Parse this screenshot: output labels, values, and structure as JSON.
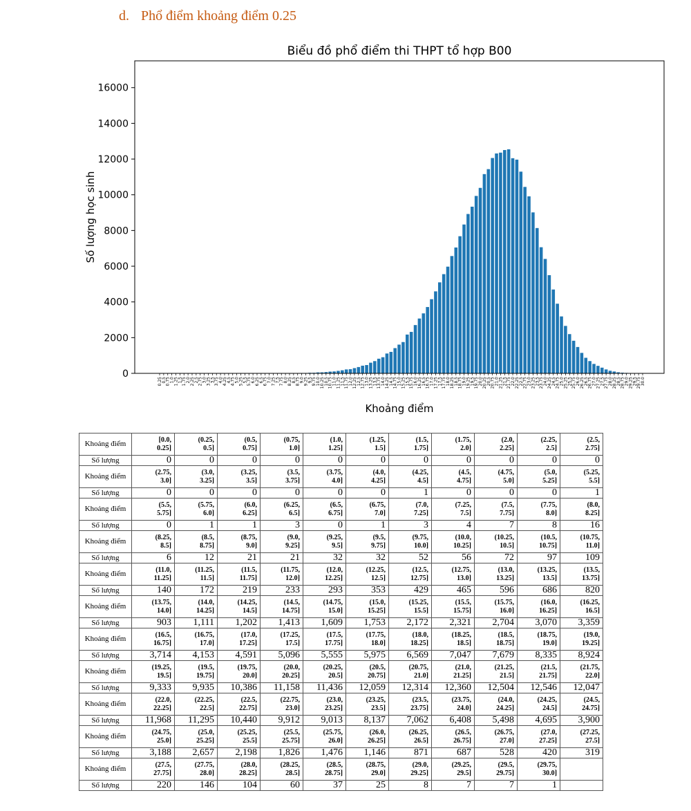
{
  "heading": {
    "marker": "d.",
    "text": "Phổ điểm khoảng điểm 0.25"
  },
  "colors": {
    "bar": "#1f77b4",
    "heading": "#c55a11"
  },
  "chart_data": {
    "type": "bar",
    "title": "Biểu đồ phổ điểm thi THPT tổ hợp B00",
    "xlabel": "Khoảng điểm",
    "ylabel": "Số lượng học sinh",
    "ylim": [
      0,
      17500
    ],
    "yticks": [
      "0",
      "2000",
      "4000",
      "6000",
      "8000",
      "10000",
      "12000",
      "14000",
      "16000"
    ],
    "grid": false,
    "categories": [
      "0.25",
      "0.5",
      "0.75",
      "1.0",
      "1.25",
      "1.5",
      "1.75",
      "2.0",
      "2.25",
      "2.5",
      "2.75",
      "3.0",
      "3.25",
      "3.5",
      "3.75",
      "4.0",
      "4.25",
      "4.5",
      "4.75",
      "5.0",
      "5.25",
      "5.5",
      "5.75",
      "6.0",
      "6.25",
      "6.5",
      "6.75",
      "7.0",
      "7.25",
      "7.5",
      "7.75",
      "8.0",
      "8.25",
      "8.5",
      "8.75",
      "9.0",
      "9.25",
      "9.5",
      "9.75",
      "10.0",
      "10.25",
      "10.5",
      "10.75",
      "11.0",
      "11.25",
      "11.5",
      "11.75",
      "12.0",
      "12.25",
      "12.5",
      "12.75",
      "13.0",
      "13.25",
      "13.5",
      "13.75",
      "14.0",
      "14.25",
      "14.5",
      "14.75",
      "15.0",
      "15.25",
      "15.5",
      "15.75",
      "16.0",
      "16.25",
      "16.5",
      "16.75",
      "17.0",
      "17.25",
      "17.5",
      "17.75",
      "18.0",
      "18.25",
      "18.5",
      "18.75",
      "19.0",
      "19.25",
      "19.5",
      "19.75",
      "20.0",
      "20.25",
      "20.5",
      "20.75",
      "21.0",
      "21.25",
      "21.5",
      "21.75",
      "22.0",
      "22.25",
      "22.5",
      "22.75",
      "23.0",
      "23.25",
      "23.5",
      "23.75",
      "24.0",
      "24.25",
      "24.5",
      "24.75",
      "25.0",
      "25.25",
      "25.5",
      "25.75",
      "26.0",
      "26.25",
      "26.5",
      "26.75",
      "27.0",
      "27.25",
      "27.5",
      "27.75",
      "28.0",
      "28.25",
      "28.5",
      "28.75",
      "29.0",
      "29.25",
      "29.5",
      "29.75",
      "30.0"
    ],
    "values": [
      0,
      0,
      0,
      0,
      0,
      0,
      0,
      0,
      0,
      0,
      0,
      0,
      0,
      0,
      0,
      0,
      0,
      1,
      0,
      0,
      0,
      1,
      0,
      1,
      1,
      3,
      0,
      1,
      3,
      4,
      7,
      8,
      16,
      6,
      12,
      21,
      21,
      32,
      32,
      52,
      56,
      72,
      97,
      109,
      140,
      172,
      219,
      233,
      293,
      353,
      429,
      465,
      596,
      686,
      820,
      903,
      1111,
      1202,
      1413,
      1609,
      1753,
      2172,
      2321,
      2704,
      3070,
      3359,
      3714,
      4153,
      4591,
      5096,
      5555,
      5975,
      6569,
      7047,
      7679,
      8335,
      8924,
      9333,
      9935,
      10386,
      11158,
      11436,
      12059,
      12314,
      12360,
      12504,
      12546,
      12047,
      11968,
      11295,
      10440,
      9912,
      9013,
      8137,
      7062,
      6408,
      5498,
      4695,
      3900,
      3188,
      2657,
      2198,
      1826,
      1476,
      1146,
      871,
      687,
      528,
      420,
      319,
      220,
      146,
      104,
      60,
      37,
      25,
      8,
      7,
      7,
      1
    ]
  },
  "table": {
    "row_label_range": "Khoảng điểm",
    "row_label_count": "Số lượng",
    "rows": [
      {
        "ranges": [
          [
            "[0.0,",
            "0.25]"
          ],
          [
            "(0.25,",
            "0.5]"
          ],
          [
            "(0.5,",
            "0.75]"
          ],
          [
            "(0.75,",
            "1.0]"
          ],
          [
            "(1.0,",
            "1.25]"
          ],
          [
            "(1.25,",
            "1.5]"
          ],
          [
            "(1.5,",
            "1.75]"
          ],
          [
            "(1.75,",
            "2.0]"
          ],
          [
            "(2.0,",
            "2.25]"
          ],
          [
            "(2.25,",
            "2.5]"
          ],
          [
            "(2.5,",
            "2.75]"
          ]
        ],
        "counts": [
          "0",
          "0",
          "0",
          "0",
          "0",
          "0",
          "0",
          "0",
          "0",
          "0",
          "0"
        ]
      },
      {
        "ranges": [
          [
            "(2.75,",
            "3.0]"
          ],
          [
            "(3.0,",
            "3.25]"
          ],
          [
            "(3.25,",
            "3.5]"
          ],
          [
            "(3.5,",
            "3.75]"
          ],
          [
            "(3.75,",
            "4.0]"
          ],
          [
            "(4.0,",
            "4.25]"
          ],
          [
            "(4.25,",
            "4.5]"
          ],
          [
            "(4.5,",
            "4.75]"
          ],
          [
            "(4.75,",
            "5.0]"
          ],
          [
            "(5.0,",
            "5.25]"
          ],
          [
            "(5.25,",
            "5.5]"
          ]
        ],
        "counts": [
          "0",
          "0",
          "0",
          "0",
          "0",
          "0",
          "1",
          "0",
          "0",
          "0",
          "1"
        ]
      },
      {
        "ranges": [
          [
            "(5.5,",
            "5.75]"
          ],
          [
            "(5.75,",
            "6.0]"
          ],
          [
            "(6.0,",
            "6.25]"
          ],
          [
            "(6.25,",
            "6.5]"
          ],
          [
            "(6.5,",
            "6.75]"
          ],
          [
            "(6.75,",
            "7.0]"
          ],
          [
            "(7.0,",
            "7.25]"
          ],
          [
            "(7.25,",
            "7.5]"
          ],
          [
            "(7.5,",
            "7.75]"
          ],
          [
            "(7.75,",
            "8.0]"
          ],
          [
            "(8.0,",
            "8.25]"
          ]
        ],
        "counts": [
          "0",
          "1",
          "1",
          "3",
          "0",
          "1",
          "3",
          "4",
          "7",
          "8",
          "16"
        ]
      },
      {
        "ranges": [
          [
            "(8.25,",
            "8.5]"
          ],
          [
            "(8.5,",
            "8.75]"
          ],
          [
            "(8.75,",
            "9.0]"
          ],
          [
            "(9.0,",
            "9.25]"
          ],
          [
            "(9.25,",
            "9.5]"
          ],
          [
            "(9.5,",
            "9.75]"
          ],
          [
            "(9.75,",
            "10.0]"
          ],
          [
            "(10.0,",
            "10.25]"
          ],
          [
            "(10.25,",
            "10.5]"
          ],
          [
            "(10.5,",
            "10.75]"
          ],
          [
            "(10.75,",
            "11.0]"
          ]
        ],
        "counts": [
          "6",
          "12",
          "21",
          "21",
          "32",
          "32",
          "52",
          "56",
          "72",
          "97",
          "109"
        ]
      },
      {
        "ranges": [
          [
            "(11.0,",
            "11.25]"
          ],
          [
            "(11.25,",
            "11.5]"
          ],
          [
            "(11.5,",
            "11.75]"
          ],
          [
            "(11.75,",
            "12.0]"
          ],
          [
            "(12.0,",
            "12.25]"
          ],
          [
            "(12.25,",
            "12.5]"
          ],
          [
            "(12.5,",
            "12.75]"
          ],
          [
            "(12.75,",
            "13.0]"
          ],
          [
            "(13.0,",
            "13.25]"
          ],
          [
            "(13.25,",
            "13.5]"
          ],
          [
            "(13.5,",
            "13.75]"
          ]
        ],
        "counts": [
          "140",
          "172",
          "219",
          "233",
          "293",
          "353",
          "429",
          "465",
          "596",
          "686",
          "820"
        ]
      },
      {
        "ranges": [
          [
            "(13.75,",
            "14.0]"
          ],
          [
            "(14.0,",
            "14.25]"
          ],
          [
            "(14.25,",
            "14.5]"
          ],
          [
            "(14.5,",
            "14.75]"
          ],
          [
            "(14.75,",
            "15.0]"
          ],
          [
            "(15.0,",
            "15.25]"
          ],
          [
            "(15.25,",
            "15.5]"
          ],
          [
            "(15.5,",
            "15.75]"
          ],
          [
            "(15.75,",
            "16.0]"
          ],
          [
            "(16.0,",
            "16.25]"
          ],
          [
            "(16.25,",
            "16.5]"
          ]
        ],
        "counts": [
          "903",
          "1,111",
          "1,202",
          "1,413",
          "1,609",
          "1,753",
          "2,172",
          "2,321",
          "2,704",
          "3,070",
          "3,359"
        ]
      },
      {
        "ranges": [
          [
            "(16.5,",
            "16.75]"
          ],
          [
            "(16.75,",
            "17.0]"
          ],
          [
            "(17.0,",
            "17.25]"
          ],
          [
            "(17.25,",
            "17.5]"
          ],
          [
            "(17.5,",
            "17.75]"
          ],
          [
            "(17.75,",
            "18.0]"
          ],
          [
            "(18.0,",
            "18.25]"
          ],
          [
            "(18.25,",
            "18.5]"
          ],
          [
            "(18.5,",
            "18.75]"
          ],
          [
            "(18.75,",
            "19.0]"
          ],
          [
            "(19.0,",
            "19.25]"
          ]
        ],
        "counts": [
          "3,714",
          "4,153",
          "4,591",
          "5,096",
          "5,555",
          "5,975",
          "6,569",
          "7,047",
          "7,679",
          "8,335",
          "8,924"
        ]
      },
      {
        "ranges": [
          [
            "(19.25,",
            "19.5]"
          ],
          [
            "(19.5,",
            "19.75]"
          ],
          [
            "(19.75,",
            "20.0]"
          ],
          [
            "(20.0,",
            "20.25]"
          ],
          [
            "(20.25,",
            "20.5]"
          ],
          [
            "(20.5,",
            "20.75]"
          ],
          [
            "(20.75,",
            "21.0]"
          ],
          [
            "(21.0,",
            "21.25]"
          ],
          [
            "(21.25,",
            "21.5]"
          ],
          [
            "(21.5,",
            "21.75]"
          ],
          [
            "(21.75,",
            "22.0]"
          ]
        ],
        "counts": [
          "9,333",
          "9,935",
          "10,386",
          "11,158",
          "11,436",
          "12,059",
          "12,314",
          "12,360",
          "12,504",
          "12,546",
          "12,047"
        ]
      },
      {
        "ranges": [
          [
            "(22.0,",
            "22.25]"
          ],
          [
            "(22.25,",
            "22.5]"
          ],
          [
            "(22.5,",
            "22.75]"
          ],
          [
            "(22.75,",
            "23.0]"
          ],
          [
            "(23.0,",
            "23.25]"
          ],
          [
            "(23.25,",
            "23.5]"
          ],
          [
            "(23.5,",
            "23.75]"
          ],
          [
            "(23.75,",
            "24.0]"
          ],
          [
            "(24.0,",
            "24.25]"
          ],
          [
            "(24.25,",
            "24.5]"
          ],
          [
            "(24.5,",
            "24.75]"
          ]
        ],
        "counts": [
          "11,968",
          "11,295",
          "10,440",
          "9,912",
          "9,013",
          "8,137",
          "7,062",
          "6,408",
          "5,498",
          "4,695",
          "3,900"
        ]
      },
      {
        "ranges": [
          [
            "(24.75,",
            "25.0]"
          ],
          [
            "(25.0,",
            "25.25]"
          ],
          [
            "(25.25,",
            "25.5]"
          ],
          [
            "(25.5,",
            "25.75]"
          ],
          [
            "(25.75,",
            "26.0]"
          ],
          [
            "(26.0,",
            "26.25]"
          ],
          [
            "(26.25,",
            "26.5]"
          ],
          [
            "(26.5,",
            "26.75]"
          ],
          [
            "(26.75,",
            "27.0]"
          ],
          [
            "(27.0,",
            "27.25]"
          ],
          [
            "(27.25,",
            "27.5]"
          ]
        ],
        "counts": [
          "3,188",
          "2,657",
          "2,198",
          "1,826",
          "1,476",
          "1,146",
          "871",
          "687",
          "528",
          "420",
          "319"
        ]
      },
      {
        "ranges": [
          [
            "(27.5,",
            "27.75]"
          ],
          [
            "(27.75,",
            "28.0]"
          ],
          [
            "(28.0,",
            "28.25]"
          ],
          [
            "(28.25,",
            "28.5]"
          ],
          [
            "(28.5,",
            "28.75]"
          ],
          [
            "(28.75,",
            "29.0]"
          ],
          [
            "(29.0,",
            "29.25]"
          ],
          [
            "(29.25,",
            "29.5]"
          ],
          [
            "(29.5,",
            "29.75]"
          ],
          [
            "(29.75,",
            "30.0]"
          ],
          [
            "",
            ""
          ]
        ],
        "counts": [
          "220",
          "146",
          "104",
          "60",
          "37",
          "25",
          "8",
          "7",
          "7",
          "1",
          ""
        ]
      }
    ]
  }
}
